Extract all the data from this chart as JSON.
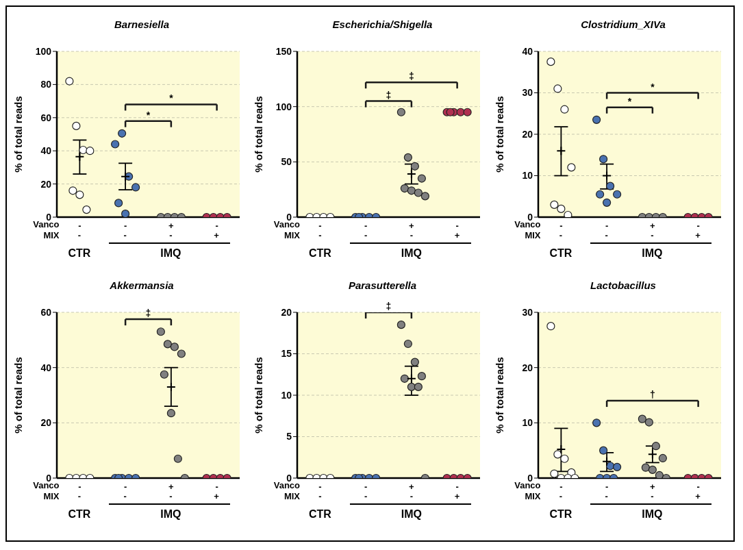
{
  "chart_data": [
    {
      "type": "scatter",
      "title": "Barnesiella",
      "ylabel": "% of total reads",
      "categories": [
        "-",
        "-",
        "+",
        "-"
      ],
      "ylim": [
        0,
        100
      ],
      "yticks": [
        0,
        20,
        40,
        60,
        80,
        100
      ],
      "grid": "y",
      "marker": "circle",
      "series": [
        {
          "colors": [
            "#ffffff",
            "#4a72b0",
            "#808080",
            "#b03050"
          ],
          "values": [
            82,
            44,
            0,
            0
          ]
        },
        {
          "colors": [
            "#ffffff",
            "#4a72b0",
            "#808080",
            "#b03050"
          ],
          "values": [
            55,
            50.5,
            0,
            0
          ]
        },
        {
          "colors": [
            "#ffffff",
            "#4a72b0",
            "#808080",
            "#b03050"
          ],
          "values": [
            40.5,
            24.5,
            0,
            0
          ]
        },
        {
          "colors": [
            "#ffffff",
            "#4a72b0",
            "#808080",
            "#b03050"
          ],
          "values": [
            40,
            18,
            0,
            0
          ]
        },
        {
          "colors": [
            "#ffffff",
            "#4a72b0",
            "#808080",
            "#b03050"
          ],
          "values": [
            16,
            8.5,
            null,
            null
          ]
        },
        {
          "colors": [
            "#ffffff",
            "#4a72b0",
            "#808080",
            "#b03050"
          ],
          "values": [
            13.5,
            2,
            null,
            null
          ]
        },
        {
          "colors": [
            "#ffffff",
            "#4a72b0",
            "#808080",
            "#b03050"
          ],
          "values": [
            4.5,
            null,
            null,
            null
          ]
        },
        {
          "color": "#000000",
          "marker": "cross",
          "values": [
            36.5,
            24.5,
            null,
            null
          ],
          "errors": [
            [
              26,
              46.5
            ],
            [
              16.5,
              32.5
            ],
            null,
            null
          ]
        },
        {
          "type": "line",
          "color": "#1a1a1a",
          "marker": "none",
          "values": [
            null,
            58,
            58,
            null
          ]
        },
        {
          "type": "line",
          "color": "#1a1a1a",
          "marker": "none",
          "values": [
            null,
            68,
            null,
            68
          ]
        }
      ],
      "annotations": [
        "Vanco",
        "MIX",
        "-",
        "-",
        "-",
        "+",
        "CTR",
        "IMQ",
        "*",
        "*"
      ]
    },
    {
      "type": "scatter",
      "title": "Escherichia/Shigella",
      "ylabel": "% of total reads",
      "categories": [
        "-",
        "-",
        "+",
        "-"
      ],
      "ylim": [
        0,
        150
      ],
      "yticks": [
        0,
        50,
        100,
        150
      ],
      "grid": "y",
      "marker": "circle",
      "series": [
        {
          "colors": [
            "#ffffff",
            "#4a72b0",
            "#808080",
            "#b03050"
          ],
          "values": [
            0,
            0,
            95,
            95
          ]
        },
        {
          "colors": [
            "#ffffff",
            "#4a72b0",
            "#808080",
            "#b03050"
          ],
          "values": [
            0,
            0,
            54,
            95
          ]
        },
        {
          "colors": [
            "#ffffff",
            "#4a72b0",
            "#808080",
            "#b03050"
          ],
          "values": [
            0,
            0,
            46,
            95
          ]
        },
        {
          "colors": [
            "#ffffff",
            "#4a72b0",
            "#808080",
            "#b03050"
          ],
          "values": [
            0,
            0,
            35,
            95
          ]
        },
        {
          "colors": [
            "#ffffff",
            "#4a72b0",
            "#808080",
            "#b03050"
          ],
          "values": [
            null,
            0,
            26,
            95
          ]
        },
        {
          "colors": [
            "#ffffff",
            "#4a72b0",
            "#808080",
            "#b03050"
          ],
          "values": [
            null,
            null,
            24,
            null
          ]
        },
        {
          "colors": [
            "#ffffff",
            "#4a72b0",
            "#808080",
            "#b03050"
          ],
          "values": [
            null,
            null,
            22,
            null
          ]
        },
        {
          "colors": [
            "#ffffff",
            "#4a72b0",
            "#808080",
            "#b03050"
          ],
          "values": [
            null,
            null,
            19,
            null
          ]
        },
        {
          "color": "#000000",
          "marker": "cross",
          "values": [
            null,
            null,
            39,
            null
          ],
          "errors": [
            null,
            null,
            [
              30,
              48
            ],
            null
          ]
        },
        {
          "type": "line",
          "color": "#1a1a1a",
          "marker": "none",
          "values": [
            null,
            105,
            105,
            null
          ]
        },
        {
          "type": "line",
          "color": "#1a1a1a",
          "marker": "none",
          "values": [
            null,
            122,
            null,
            122
          ]
        }
      ],
      "annotations": [
        "Vanco",
        "MIX",
        "-",
        "-",
        "-",
        "+",
        "CTR",
        "IMQ",
        "‡",
        "‡"
      ]
    },
    {
      "type": "scatter",
      "title": "Clostridium_XIVa",
      "ylabel": "% of total reads",
      "categories": [
        "-",
        "-",
        "+",
        "-"
      ],
      "ylim": [
        0,
        40
      ],
      "yticks": [
        0,
        10,
        20,
        30,
        40
      ],
      "grid": "y",
      "marker": "circle",
      "series": [
        {
          "colors": [
            "#ffffff",
            "#4a72b0",
            "#808080",
            "#b03050"
          ],
          "values": [
            37.5,
            23.5,
            0,
            0
          ]
        },
        {
          "colors": [
            "#ffffff",
            "#4a72b0",
            "#808080",
            "#b03050"
          ],
          "values": [
            31,
            14,
            0,
            0
          ]
        },
        {
          "colors": [
            "#ffffff",
            "#4a72b0",
            "#808080",
            "#b03050"
          ],
          "values": [
            26,
            7.5,
            0,
            0
          ]
        },
        {
          "colors": [
            "#ffffff",
            "#4a72b0",
            "#808080",
            "#b03050"
          ],
          "values": [
            12,
            5.5,
            0,
            0
          ]
        },
        {
          "colors": [
            "#ffffff",
            "#4a72b0",
            "#808080",
            "#b03050"
          ],
          "values": [
            3,
            5.5,
            null,
            null
          ]
        },
        {
          "colors": [
            "#ffffff",
            "#4a72b0",
            "#808080",
            "#b03050"
          ],
          "values": [
            2,
            3.5,
            null,
            null
          ]
        },
        {
          "colors": [
            "#ffffff",
            "#4a72b0",
            "#808080",
            "#b03050"
          ],
          "values": [
            0.5,
            null,
            null,
            null
          ]
        },
        {
          "color": "#000000",
          "marker": "cross",
          "values": [
            16,
            10,
            null,
            null
          ],
          "errors": [
            [
              10,
              21.8
            ],
            [
              6.8,
              12.8
            ],
            null,
            null
          ]
        },
        {
          "type": "line",
          "color": "#1a1a1a",
          "marker": "none",
          "values": [
            null,
            26.5,
            26.5,
            null
          ]
        },
        {
          "type": "line",
          "color": "#1a1a1a",
          "marker": "none",
          "values": [
            null,
            30,
            null,
            30
          ]
        }
      ],
      "annotations": [
        "Vanco",
        "MIX",
        "-",
        "-",
        "-",
        "+",
        "CTR",
        "IMQ",
        "*",
        "*"
      ]
    },
    {
      "type": "scatter",
      "title": "Akkermansia",
      "ylabel": "% of total reads",
      "categories": [
        "-",
        "-",
        "+",
        "-"
      ],
      "ylim": [
        0,
        60
      ],
      "yticks": [
        0,
        20,
        40,
        60
      ],
      "grid": "y",
      "marker": "circle",
      "series": [
        {
          "colors": [
            "#ffffff",
            "#4a72b0",
            "#808080",
            "#b03050"
          ],
          "values": [
            0,
            0,
            53,
            0
          ]
        },
        {
          "colors": [
            "#ffffff",
            "#4a72b0",
            "#808080",
            "#b03050"
          ],
          "values": [
            0,
            0,
            48.5,
            0
          ]
        },
        {
          "colors": [
            "#ffffff",
            "#4a72b0",
            "#808080",
            "#b03050"
          ],
          "values": [
            0,
            0,
            47.5,
            0
          ]
        },
        {
          "colors": [
            "#ffffff",
            "#4a72b0",
            "#808080",
            "#b03050"
          ],
          "values": [
            0,
            0,
            45,
            0
          ]
        },
        {
          "colors": [
            "#ffffff",
            "#4a72b0",
            "#808080",
            "#b03050"
          ],
          "values": [
            null,
            0,
            37.5,
            null
          ]
        },
        {
          "colors": [
            "#ffffff",
            "#4a72b0",
            "#808080",
            "#b03050"
          ],
          "values": [
            null,
            null,
            23.5,
            null
          ]
        },
        {
          "colors": [
            "#ffffff",
            "#4a72b0",
            "#808080",
            "#b03050"
          ],
          "values": [
            null,
            null,
            7,
            null
          ]
        },
        {
          "colors": [
            "#ffffff",
            "#4a72b0",
            "#808080",
            "#b03050"
          ],
          "values": [
            null,
            null,
            0,
            null
          ]
        },
        {
          "color": "#000000",
          "marker": "cross",
          "values": [
            null,
            null,
            33,
            null
          ],
          "errors": [
            null,
            null,
            [
              26,
              40
            ],
            null
          ]
        },
        {
          "type": "line",
          "color": "#1a1a1a",
          "marker": "none",
          "values": [
            null,
            57.5,
            57.5,
            null
          ]
        }
      ],
      "annotations": [
        "Vanco",
        "MIX",
        "-",
        "-",
        "-",
        "+",
        "CTR",
        "IMQ",
        "‡"
      ]
    },
    {
      "type": "scatter",
      "title": "Parasutterella",
      "ylabel": "% of total reads",
      "categories": [
        "-",
        "-",
        "+",
        "-"
      ],
      "ylim": [
        0,
        20
      ],
      "yticks": [
        0,
        5,
        10,
        15,
        20
      ],
      "grid": "y",
      "marker": "circle",
      "series": [
        {
          "colors": [
            "#ffffff",
            "#4a72b0",
            "#808080",
            "#b03050"
          ],
          "values": [
            0,
            0,
            18.5,
            0
          ]
        },
        {
          "colors": [
            "#ffffff",
            "#4a72b0",
            "#808080",
            "#b03050"
          ],
          "values": [
            0,
            0,
            16.2,
            0
          ]
        },
        {
          "colors": [
            "#ffffff",
            "#4a72b0",
            "#808080",
            "#b03050"
          ],
          "values": [
            0,
            0,
            14,
            0
          ]
        },
        {
          "colors": [
            "#ffffff",
            "#4a72b0",
            "#808080",
            "#b03050"
          ],
          "values": [
            0,
            0,
            12.3,
            0
          ]
        },
        {
          "colors": [
            "#ffffff",
            "#4a72b0",
            "#808080",
            "#b03050"
          ],
          "values": [
            null,
            0,
            12,
            null
          ]
        },
        {
          "colors": [
            "#ffffff",
            "#4a72b0",
            "#808080",
            "#b03050"
          ],
          "values": [
            null,
            null,
            11,
            null
          ]
        },
        {
          "colors": [
            "#ffffff",
            "#4a72b0",
            "#808080",
            "#b03050"
          ],
          "values": [
            null,
            null,
            11,
            null
          ]
        },
        {
          "colors": [
            "#ffffff",
            "#4a72b0",
            "#808080",
            "#b03050"
          ],
          "values": [
            null,
            null,
            0,
            null
          ]
        },
        {
          "color": "#000000",
          "marker": "cross",
          "values": [
            null,
            null,
            12,
            null
          ],
          "errors": [
            null,
            null,
            [
              10,
              13.5
            ],
            null
          ]
        },
        {
          "type": "line",
          "color": "#1a1a1a",
          "marker": "none",
          "values": [
            null,
            20,
            20,
            null
          ]
        }
      ],
      "annotations": [
        "Vanco",
        "MIX",
        "-",
        "-",
        "-",
        "+",
        "CTR",
        "IMQ",
        "‡"
      ]
    },
    {
      "type": "scatter",
      "title": "Lactobacillus",
      "ylabel": "% of total reads",
      "categories": [
        "-",
        "-",
        "+",
        "-"
      ],
      "ylim": [
        0,
        30
      ],
      "yticks": [
        0,
        10,
        20,
        30
      ],
      "grid": "y",
      "marker": "circle",
      "series": [
        {
          "colors": [
            "#ffffff",
            "#4a72b0",
            "#808080",
            "#b03050"
          ],
          "values": [
            27.5,
            10,
            10.7,
            0
          ]
        },
        {
          "colors": [
            "#ffffff",
            "#4a72b0",
            "#808080",
            "#b03050"
          ],
          "values": [
            4.3,
            5,
            10.1,
            0
          ]
        },
        {
          "colors": [
            "#ffffff",
            "#4a72b0",
            "#808080",
            "#b03050"
          ],
          "values": [
            3.5,
            2.2,
            5.8,
            0
          ]
        },
        {
          "colors": [
            "#ffffff",
            "#4a72b0",
            "#808080",
            "#b03050"
          ],
          "values": [
            1,
            2,
            3.6,
            0
          ]
        },
        {
          "colors": [
            "#ffffff",
            "#4a72b0",
            "#808080",
            "#b03050"
          ],
          "values": [
            0.8,
            0,
            1.9,
            null
          ]
        },
        {
          "colors": [
            "#ffffff",
            "#4a72b0",
            "#808080",
            "#b03050"
          ],
          "values": [
            0,
            0,
            1.5,
            null
          ]
        },
        {
          "colors": [
            "#ffffff",
            "#4a72b0",
            "#808080",
            "#b03050"
          ],
          "values": [
            0,
            0,
            0.5,
            null
          ]
        },
        {
          "colors": [
            "#ffffff",
            "#4a72b0",
            "#808080",
            "#b03050"
          ],
          "values": [
            0,
            null,
            0,
            null
          ]
        },
        {
          "color": "#000000",
          "marker": "cross",
          "values": [
            5.2,
            3,
            4.3,
            null
          ],
          "errors": [
            [
              1.2,
              9
            ],
            [
              1.2,
              4.6
            ],
            [
              2.8,
              5.8
            ],
            null
          ]
        },
        {
          "type": "line",
          "color": "#1a1a1a",
          "marker": "none",
          "values": [
            null,
            14,
            null,
            14
          ]
        }
      ],
      "annotations": [
        "Vanco",
        "MIX",
        "-",
        "-",
        "-",
        "+",
        "CTR",
        "IMQ",
        "†"
      ]
    }
  ]
}
